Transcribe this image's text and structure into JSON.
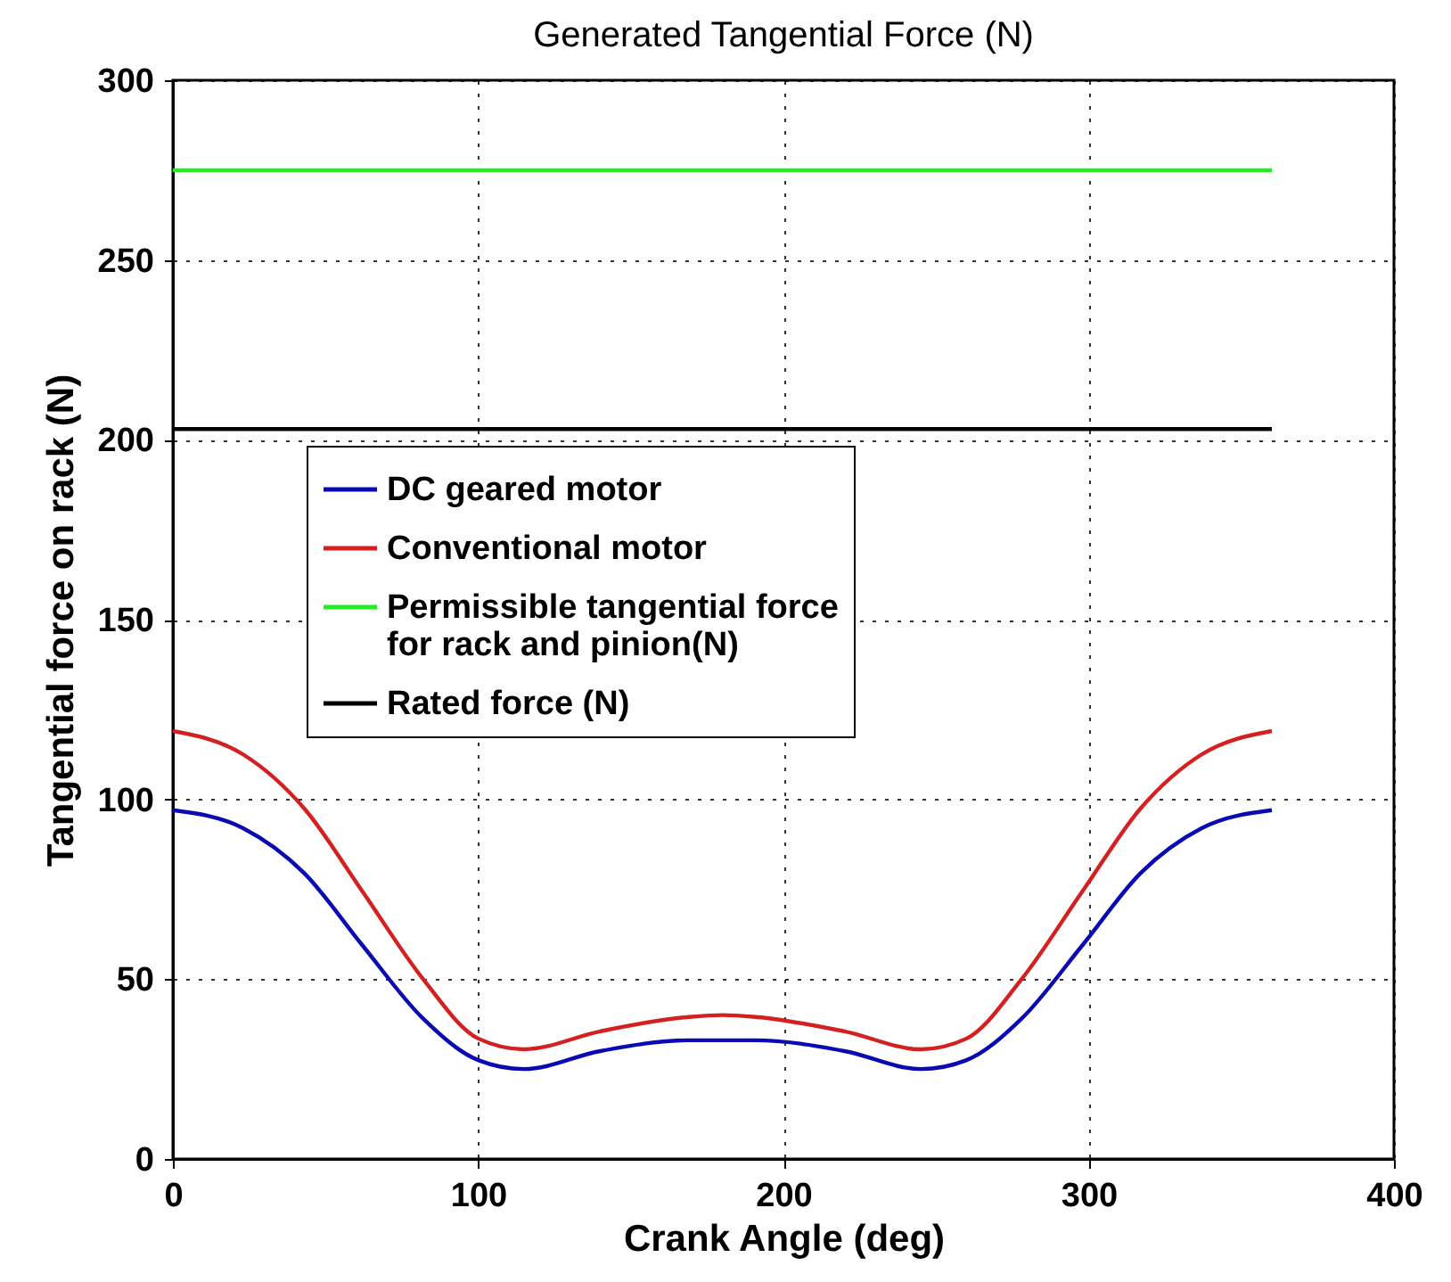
{
  "chart_data": {
    "type": "line",
    "title": "Generated Tangential Force (N)",
    "xlabel": "Crank Angle (deg)",
    "ylabel": "Tangential force on rack (N)",
    "x": [
      0,
      23,
      43,
      62,
      82,
      100,
      115,
      140,
      169,
      180,
      191,
      220,
      245,
      260,
      278,
      298,
      317,
      337,
      360
    ],
    "series": [
      {
        "name": "DC geared motor",
        "color": "#0a0ab4",
        "values": [
          97,
          92,
          79.5,
          59.5,
          39,
          27.5,
          25,
          30,
          33,
          33,
          33,
          30,
          25,
          27.5,
          39,
          59.5,
          79.5,
          92,
          97
        ]
      },
      {
        "name": "Conventional motor",
        "color": "#d42020",
        "values": [
          119,
          112.5,
          97.5,
          74.5,
          50,
          33.5,
          30.5,
          35.5,
          39.5,
          40,
          39.5,
          35.5,
          30.5,
          33.5,
          50,
          74.5,
          97.5,
          112.5,
          119
        ]
      },
      {
        "name": "Permissible tangential force\nfor rack and pinion(N)",
        "color": "#22ee22",
        "values": [
          275,
          275,
          275,
          275,
          275,
          275,
          275,
          275,
          275,
          275,
          275,
          275,
          275,
          275,
          275,
          275,
          275,
          275,
          275
        ]
      },
      {
        "name": "Rated force (N)",
        "color": "#000000",
        "values": [
          203,
          203,
          203,
          203,
          203,
          203,
          203,
          203,
          203,
          203,
          203,
          203,
          203,
          203,
          203,
          203,
          203,
          203,
          203
        ]
      }
    ],
    "xlim": [
      0,
      400
    ],
    "xticks": [
      0,
      100,
      200,
      300,
      400
    ],
    "ylim": [
      0,
      300
    ],
    "yticks": [
      0,
      50,
      100,
      150,
      200,
      250,
      300
    ],
    "grid": true,
    "legend": "left",
    "marker": "none",
    "line_style": "solid"
  }
}
